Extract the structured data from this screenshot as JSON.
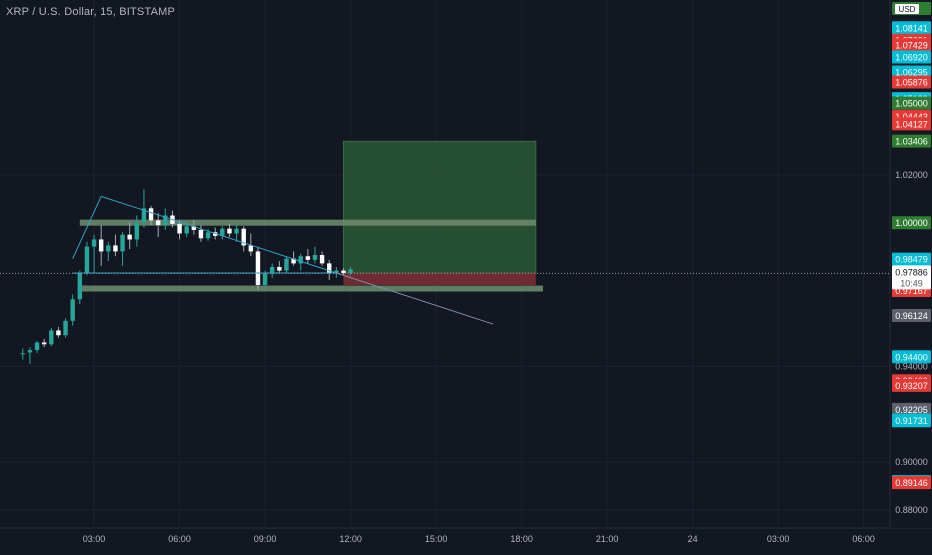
{
  "header": {
    "symbol_title": "XRP / U.S. Dollar, 15, BITSTAMP",
    "currency_badge": "USD"
  },
  "colors": {
    "background": "#131722",
    "grid": "#1e2230",
    "axis_text": "#b2b5be",
    "up": "#26a69a",
    "down": "#ef5350",
    "wick": "#a6a9b3",
    "trendline": "#2ea3c8",
    "profit_zone": "#295433",
    "loss_zone": "#7a2e33",
    "zone_bar": "#6f8f6f",
    "label_green": "#2e7d32",
    "label_red": "#e53935",
    "label_teal": "#00bcd4",
    "label_gray": "#5d606b",
    "label_white": "#ffffff"
  },
  "price_axis": {
    "tick_labels": [
      "1.02000",
      "0.94000",
      "0.90000",
      "0.88000"
    ],
    "price_labels": [
      {
        "value": "1.08141",
        "color": "teal"
      },
      {
        "value": "1.07621",
        "color": "red"
      },
      {
        "value": "1.07429",
        "color": "red"
      },
      {
        "value": "1.06920",
        "color": "teal"
      },
      {
        "value": "1.06295",
        "color": "teal"
      },
      {
        "value": "1.05876",
        "color": "red"
      },
      {
        "value": "1.05180",
        "color": "teal"
      },
      {
        "value": "1.05000",
        "color": "green"
      },
      {
        "value": "1.04443",
        "color": "red"
      },
      {
        "value": "1.04127",
        "color": "red"
      },
      {
        "value": "1.03406",
        "color": "green"
      },
      {
        "value": "1.00000",
        "color": "green"
      },
      {
        "value": "0.98479",
        "color": "teal"
      },
      {
        "value": "0.97615",
        "color": "red"
      },
      {
        "value": "0.97167",
        "color": "red"
      },
      {
        "value": "0.96124",
        "color": "gray"
      },
      {
        "value": "0.94400",
        "color": "teal"
      },
      {
        "value": "0.93400",
        "color": "red"
      },
      {
        "value": "0.93207",
        "color": "red"
      },
      {
        "value": "0.92205",
        "color": "gray"
      },
      {
        "value": "0.91758",
        "color": "teal"
      },
      {
        "value": "0.91731",
        "color": "teal"
      },
      {
        "value": "0.89185",
        "color": "teal"
      },
      {
        "value": "0.89146",
        "color": "red"
      }
    ],
    "current_price": "0.97886",
    "countdown": "10:49"
  },
  "time_axis": {
    "labels": [
      "03:00",
      "06:00",
      "09:00",
      "12:00",
      "15:00",
      "18:00",
      "21:00",
      "24",
      "03:00",
      "06:00",
      "09:00"
    ]
  },
  "chart_data": {
    "type": "candlestick",
    "interval": "15",
    "ylim": [
      0.8725,
      1.093
    ],
    "x_ticks": [
      "03:00",
      "06:00",
      "09:00",
      "12:00",
      "15:00",
      "18:00",
      "21:00",
      "24",
      "03:00",
      "06:00",
      "09:00"
    ],
    "grid": true,
    "candles": [
      {
        "o": 0.9452,
        "h": 0.9475,
        "l": 0.9428,
        "c": 0.9455
      },
      {
        "o": 0.9458,
        "h": 0.948,
        "l": 0.941,
        "c": 0.9468
      },
      {
        "o": 0.9468,
        "h": 0.9505,
        "l": 0.9455,
        "c": 0.95
      },
      {
        "o": 0.95,
        "h": 0.9515,
        "l": 0.948,
        "c": 0.9492
      },
      {
        "o": 0.9492,
        "h": 0.956,
        "l": 0.9485,
        "c": 0.955
      },
      {
        "o": 0.955,
        "h": 0.9565,
        "l": 0.952,
        "c": 0.953
      },
      {
        "o": 0.953,
        "h": 0.96,
        "l": 0.952,
        "c": 0.959
      },
      {
        "o": 0.959,
        "h": 0.97,
        "l": 0.957,
        "c": 0.968
      },
      {
        "o": 0.968,
        "h": 0.98,
        "l": 0.966,
        "c": 0.979
      },
      {
        "o": 0.979,
        "h": 0.992,
        "l": 0.978,
        "c": 0.99
      },
      {
        "o": 0.99,
        "h": 0.995,
        "l": 0.979,
        "c": 0.993
      },
      {
        "o": 0.993,
        "h": 0.999,
        "l": 0.982,
        "c": 0.988
      },
      {
        "o": 0.988,
        "h": 0.992,
        "l": 0.984,
        "c": 0.9905
      },
      {
        "o": 0.9905,
        "h": 0.995,
        "l": 0.986,
        "c": 0.988
      },
      {
        "o": 0.988,
        "h": 0.996,
        "l": 0.982,
        "c": 0.995
      },
      {
        "o": 0.995,
        "h": 1.0,
        "l": 0.989,
        "c": 0.993
      },
      {
        "o": 0.993,
        "h": 1.003,
        "l": 0.99,
        "c": 1.0
      },
      {
        "o": 1.0,
        "h": 1.014,
        "l": 0.998,
        "c": 1.006
      },
      {
        "o": 1.006,
        "h": 1.007,
        "l": 0.999,
        "c": 1.001
      },
      {
        "o": 1.001,
        "h": 1.004,
        "l": 0.994,
        "c": 0.999
      },
      {
        "o": 0.999,
        "h": 1.006,
        "l": 0.997,
        "c": 1.003
      },
      {
        "o": 1.003,
        "h": 1.005,
        "l": 0.998,
        "c": 0.9995
      },
      {
        "o": 0.9995,
        "h": 1.001,
        "l": 0.993,
        "c": 0.9955
      },
      {
        "o": 0.9955,
        "h": 1.0,
        "l": 0.994,
        "c": 0.9985
      },
      {
        "o": 0.9985,
        "h": 1.001,
        "l": 0.995,
        "c": 0.997
      },
      {
        "o": 0.997,
        "h": 0.999,
        "l": 0.992,
        "c": 0.9935
      },
      {
        "o": 0.9935,
        "h": 0.9975,
        "l": 0.9925,
        "c": 0.996
      },
      {
        "o": 0.996,
        "h": 0.998,
        "l": 0.993,
        "c": 0.9945
      },
      {
        "o": 0.9945,
        "h": 0.9985,
        "l": 0.993,
        "c": 0.9975
      },
      {
        "o": 0.9975,
        "h": 0.9995,
        "l": 0.994,
        "c": 0.9955
      },
      {
        "o": 0.9955,
        "h": 0.999,
        "l": 0.992,
        "c": 0.9975
      },
      {
        "o": 0.9975,
        "h": 0.9985,
        "l": 0.988,
        "c": 0.9905
      },
      {
        "o": 0.9905,
        "h": 0.9955,
        "l": 0.986,
        "c": 0.988
      },
      {
        "o": 0.988,
        "h": 0.99,
        "l": 0.972,
        "c": 0.974
      },
      {
        "o": 0.974,
        "h": 0.98,
        "l": 0.973,
        "c": 0.979
      },
      {
        "o": 0.979,
        "h": 0.983,
        "l": 0.977,
        "c": 0.9815
      },
      {
        "o": 0.9815,
        "h": 0.984,
        "l": 0.979,
        "c": 0.98
      },
      {
        "o": 0.98,
        "h": 0.986,
        "l": 0.979,
        "c": 0.985
      },
      {
        "o": 0.985,
        "h": 0.988,
        "l": 0.982,
        "c": 0.983
      },
      {
        "o": 0.983,
        "h": 0.987,
        "l": 0.98,
        "c": 0.986
      },
      {
        "o": 0.986,
        "h": 0.989,
        "l": 0.983,
        "c": 0.9845
      },
      {
        "o": 0.9845,
        "h": 0.99,
        "l": 0.983,
        "c": 0.9865
      },
      {
        "o": 0.9865,
        "h": 0.988,
        "l": 0.982,
        "c": 0.983
      },
      {
        "o": 0.983,
        "h": 0.9845,
        "l": 0.976,
        "c": 0.979
      },
      {
        "o": 0.979,
        "h": 0.9815,
        "l": 0.977,
        "c": 0.98
      },
      {
        "o": 0.98,
        "h": 0.981,
        "l": 0.978,
        "c": 0.979
      },
      {
        "o": 0.979,
        "h": 0.9815,
        "l": 0.978,
        "c": 0.9805
      }
    ],
    "candle_index_range": [
      0,
      46
    ],
    "x_index_domain": [
      -3.2,
      121.7
    ],
    "time_tick_index": [
      10,
      22,
      34,
      46,
      58,
      70,
      82,
      94,
      106,
      118,
      130
    ],
    "trendlines": [
      {
        "from_index": 7,
        "from_price": 0.985,
        "to_index": 11,
        "to_price": 1.011
      },
      {
        "from_index": 11,
        "from_price": 1.011,
        "to_index": 44,
        "to_price": 0.979
      },
      {
        "from_index": 7,
        "from_price": 0.979,
        "to_index": 44,
        "to_price": 0.979
      }
    ],
    "positions": [
      {
        "from_index": 45,
        "to_index": 72,
        "entry": 0.979,
        "target": 1.034,
        "stop": 0.974
      }
    ],
    "zones": [
      {
        "from_index": 8,
        "to_index": 72,
        "price": 1.0
      },
      {
        "from_index": 8,
        "to_index": 73,
        "price": 0.9725
      }
    ],
    "current_price": 0.97886
  }
}
